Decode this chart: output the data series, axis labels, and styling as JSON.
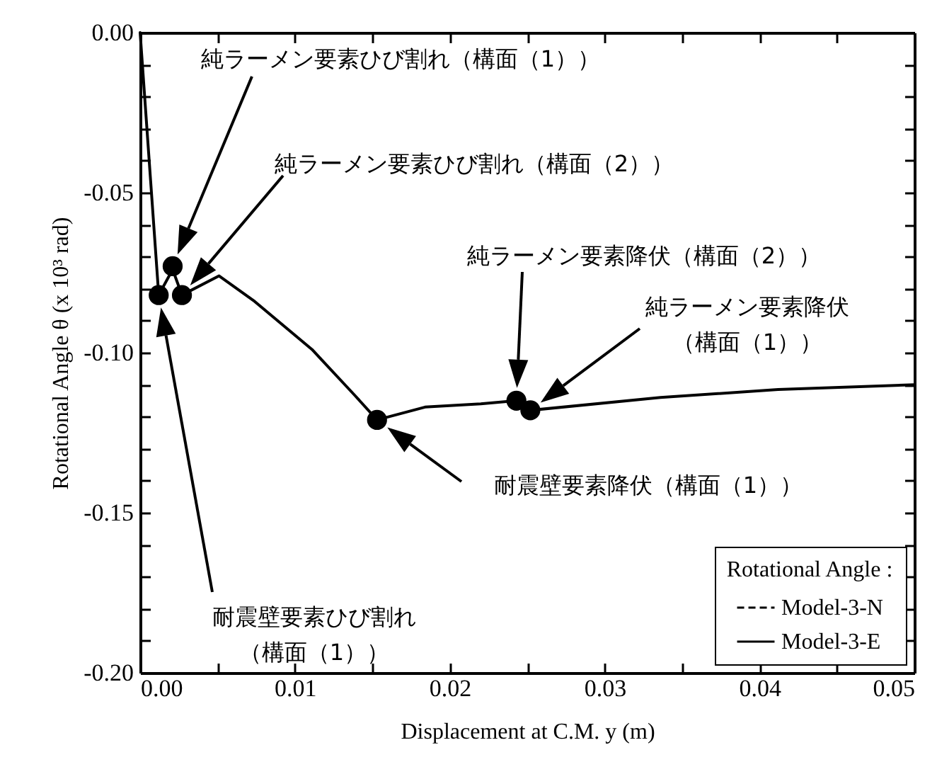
{
  "chart_data": {
    "type": "line",
    "xlabel": "Displacement at C.M. y (m)",
    "ylabel": "Rotational Angle θ (x 10³ rad)",
    "legend_title": "Rotational Angle :",
    "xlim": [
      0,
      0.05
    ],
    "ylim": [
      -0.2,
      0
    ],
    "xticks": [
      {
        "value": 0,
        "label": "0.00"
      },
      {
        "value": 0.005,
        "label": null
      },
      {
        "value": 0.01,
        "label": "0.01"
      },
      {
        "value": 0.015,
        "label": null
      },
      {
        "value": 0.02,
        "label": "0.02"
      },
      {
        "value": 0.025,
        "label": null
      },
      {
        "value": 0.03,
        "label": "0.03"
      },
      {
        "value": 0.035,
        "label": null
      },
      {
        "value": 0.04,
        "label": "0.04"
      },
      {
        "value": 0.045,
        "label": null
      },
      {
        "value": 0.05,
        "label": "0.05"
      }
    ],
    "yticks": [
      {
        "value": -0.2,
        "label": "-0.20"
      },
      {
        "value": -0.19,
        "label": null
      },
      {
        "value": -0.18,
        "label": null
      },
      {
        "value": -0.17,
        "label": null
      },
      {
        "value": -0.16,
        "label": null
      },
      {
        "value": -0.15,
        "label": "-0.15"
      },
      {
        "value": -0.14,
        "label": null
      },
      {
        "value": -0.13,
        "label": null
      },
      {
        "value": -0.12,
        "label": null
      },
      {
        "value": -0.11,
        "label": null
      },
      {
        "value": -0.1,
        "label": "-0.10"
      },
      {
        "value": -0.09,
        "label": null
      },
      {
        "value": -0.08,
        "label": null
      },
      {
        "value": -0.07,
        "label": null
      },
      {
        "value": -0.06,
        "label": null
      },
      {
        "value": -0.05,
        "label": "-0.05"
      },
      {
        "value": -0.04,
        "label": null
      },
      {
        "value": -0.03,
        "label": null
      },
      {
        "value": -0.02,
        "label": null
      },
      {
        "value": -0.01,
        "label": null
      },
      {
        "value": 0,
        "label": "0.00"
      }
    ],
    "legend": "bottom right",
    "grid": false,
    "series": [
      {
        "name": "Model-3-N",
        "color": "#000000",
        "line_style": "dashed"
      },
      {
        "name": "Model-3-E",
        "color": "#000000",
        "line_style": "solid",
        "x": [
          0,
          0.0012,
          0.0021,
          0.0027,
          0.0051,
          0.0074,
          0.0111,
          0.0138,
          0.0153,
          0.0184,
          0.022,
          0.0243,
          0.0252,
          0.0336,
          0.0412,
          0.05
        ],
        "values": [
          0,
          -0.082,
          -0.074,
          -0.082,
          -0.076,
          -0.084,
          -0.099,
          -0.113,
          -0.121,
          -0.117,
          -0.116,
          -0.115,
          -0.118,
          -0.114,
          -0.1115,
          -0.11
        ]
      },
      {
        "type": "scatter",
        "color": "#000000",
        "marker": "circle",
        "x": [
          0.0012,
          0.0021,
          0.0027,
          0.0153,
          0.0243,
          0.0252
        ],
        "values": [
          -0.082,
          -0.073,
          -0.082,
          -0.121,
          -0.115,
          -0.118
        ]
      }
    ],
    "annotations": [
      "耐震壁要素ひび割れ（構面（1））",
      "純ラーメン要素ひび割れ（構面（1））",
      "純ラーメン要素ひび割れ（構面（2））",
      "純ラーメン要素降伏（構面（2））",
      "純ラーメン要素降伏（構面（1））",
      "耐震壁要素降伏（構面（1））"
    ]
  }
}
